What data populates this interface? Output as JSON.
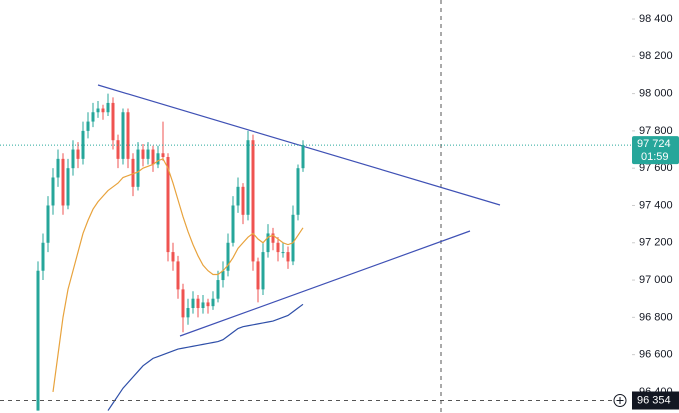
{
  "chart_data": {
    "type": "candlestick",
    "ylim": [
      96287,
      98502
    ],
    "yticks": [
      {
        "value": 98400,
        "label": "98 400"
      },
      {
        "value": 98200,
        "label": "98 200"
      },
      {
        "value": 98000,
        "label": "98 000"
      },
      {
        "value": 97800,
        "label": "97 800"
      },
      {
        "value": 97600,
        "label": "97 600"
      },
      {
        "value": 97400,
        "label": "97 400"
      },
      {
        "value": 97200,
        "label": "97 200"
      },
      {
        "value": 97000,
        "label": "97 000"
      },
      {
        "value": 96800,
        "label": "96 800"
      },
      {
        "value": 96600,
        "label": "96 600"
      },
      {
        "value": 96400,
        "label": "96 400"
      }
    ],
    "grid": false,
    "up_color": "#26a69a",
    "down_color": "#ef5350",
    "open": [
      96300,
      97050,
      97200,
      97400,
      97550,
      97650,
      97400,
      97600,
      97700,
      97650,
      97800,
      97850,
      97900,
      97920,
      97900,
      97950,
      97750,
      97650,
      97900,
      97650,
      97500,
      97700,
      97650,
      97700,
      97620,
      97680,
      97660,
      97150,
      97100,
      96950,
      96800,
      96850,
      96900,
      96850,
      96880,
      96860,
      96900,
      97000,
      97050,
      97200,
      97400,
      97500,
      97350,
      97750,
      97100,
      96950,
      97150,
      97250,
      97200,
      97150,
      97150,
      97100,
      97350,
      97600
    ],
    "high": [
      97100,
      97250,
      97450,
      97600,
      97700,
      97680,
      97650,
      97750,
      97740,
      97850,
      97900,
      97950,
      97960,
      97940,
      98000,
      97980,
      97780,
      97920,
      97920,
      97680,
      97740,
      97730,
      97740,
      97720,
      97720,
      97850,
      97680,
      97200,
      97130,
      96980,
      96900,
      96940,
      96920,
      96920,
      96900,
      96940,
      97050,
      97100,
      97250,
      97450,
      97550,
      97520,
      97800,
      97780,
      97120,
      97200,
      97300,
      97280,
      97230,
      97200,
      97180,
      97400,
      97620,
      97750
    ],
    "low": [
      96300,
      97000,
      97150,
      97350,
      97500,
      97350,
      97380,
      97560,
      97600,
      97620,
      97760,
      97820,
      97870,
      97860,
      97880,
      97700,
      97600,
      97620,
      97600,
      97450,
      97480,
      97610,
      97620,
      97580,
      97600,
      97640,
      97100,
      97050,
      96900,
      96720,
      96760,
      96820,
      96800,
      96820,
      96820,
      96840,
      96880,
      96960,
      97020,
      97180,
      97360,
      97300,
      97320,
      97050,
      96880,
      96920,
      97120,
      97160,
      97100,
      97120,
      97060,
      97080,
      97320,
      97580
    ],
    "close": [
      97050,
      97200,
      97400,
      97550,
      97650,
      97400,
      97600,
      97700,
      97650,
      97800,
      97850,
      97900,
      97920,
      97900,
      97950,
      97750,
      97650,
      97900,
      97650,
      97500,
      97700,
      97650,
      97700,
      97620,
      97680,
      97660,
      97150,
      97100,
      96950,
      96800,
      96850,
      96900,
      96850,
      96880,
      96860,
      96900,
      97000,
      97050,
      97200,
      97400,
      97500,
      97350,
      97750,
      97100,
      96950,
      97150,
      97250,
      97200,
      97150,
      97150,
      97100,
      97350,
      97600,
      97724
    ],
    "series": [
      {
        "color": "#e8a33d",
        "values": [
          null,
          null,
          null,
          96400,
          96600,
          96800,
          96950,
          97050,
          97150,
          97250,
          97320,
          97380,
          97420,
          97450,
          97480,
          97500,
          97520,
          97550,
          97560,
          97570,
          97580,
          97600,
          97610,
          97620,
          97640,
          97650,
          97600,
          97520,
          97430,
          97340,
          97260,
          97190,
          97130,
          97080,
          97050,
          97030,
          97030,
          97050,
          97080,
          97120,
          97170,
          97200,
          97230,
          97250,
          97220,
          97200,
          97230,
          97240,
          97220,
          97200,
          97190,
          97200,
          97240,
          97280
        ]
      },
      {
        "color": "#2f4fa8",
        "values": [
          null,
          null,
          null,
          null,
          null,
          null,
          null,
          null,
          null,
          null,
          null,
          null,
          null,
          null,
          96300,
          96340,
          96380,
          96420,
          96450,
          96480,
          96510,
          96540,
          96560,
          96580,
          96590,
          96600,
          96610,
          96620,
          96630,
          96635,
          96640,
          96645,
          96650,
          96655,
          96660,
          96665,
          96670,
          96680,
          96700,
          96720,
          96740,
          96750,
          96755,
          96760,
          96765,
          96770,
          96775,
          96780,
          96790,
          96800,
          96810,
          96830,
          96850,
          96870
        ]
      }
    ],
    "last_price": {
      "value": 97724,
      "label": "97 724"
    },
    "countdown": "01:59",
    "crosshair_price": {
      "value": 96354,
      "label": "96 354"
    }
  }
}
